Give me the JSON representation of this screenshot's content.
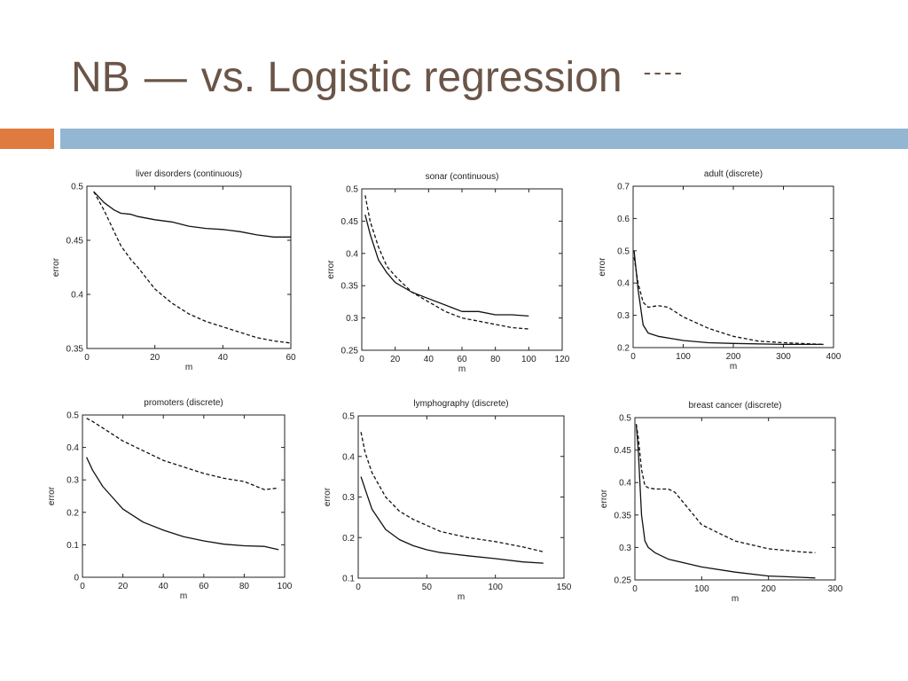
{
  "slide": {
    "title_left": "NB",
    "title_dash": "—",
    "title_right": "vs. Logistic regression",
    "title_dotted": "----",
    "colors": {
      "title": "#6b5548",
      "bar_orange": "#e07b3f",
      "bar_blue": "#93b6d2"
    }
  },
  "chart_data": [
    {
      "type": "line",
      "title": "liver disorders (continuous)",
      "xlabel": "m",
      "ylabel": "error",
      "xlim": [
        0,
        60
      ],
      "ylim": [
        0.35,
        0.5
      ],
      "xticks": [
        0,
        20,
        40,
        60
      ],
      "yticks": [
        0.35,
        0.4,
        0.45,
        0.5
      ],
      "ytick_labels": [
        "0.35",
        "0.4",
        "0.45",
        "0.5"
      ],
      "series": [
        {
          "style": "solid",
          "x": [
            2,
            5,
            8,
            10,
            13,
            15,
            20,
            25,
            30,
            35,
            40,
            45,
            50,
            55,
            60
          ],
          "y": [
            0.495,
            0.485,
            0.478,
            0.475,
            0.474,
            0.472,
            0.469,
            0.467,
            0.463,
            0.461,
            0.46,
            0.458,
            0.455,
            0.453,
            0.453
          ]
        },
        {
          "style": "dashed",
          "x": [
            2,
            5,
            8,
            10,
            13,
            15,
            20,
            25,
            30,
            35,
            40,
            45,
            50,
            55,
            60
          ],
          "y": [
            0.495,
            0.478,
            0.458,
            0.445,
            0.432,
            0.425,
            0.405,
            0.392,
            0.382,
            0.375,
            0.37,
            0.365,
            0.36,
            0.357,
            0.355
          ]
        }
      ]
    },
    {
      "type": "line",
      "title": "sonar (continuous)",
      "xlabel": "m",
      "ylabel": "error",
      "xlim": [
        0,
        120
      ],
      "ylim": [
        0.25,
        0.5
      ],
      "xticks": [
        0,
        20,
        40,
        60,
        80,
        100,
        120
      ],
      "yticks": [
        0.25,
        0.3,
        0.35,
        0.4,
        0.45,
        0.5
      ],
      "ytick_labels": [
        "0.25",
        "0.3",
        "0.35",
        "0.4",
        "0.45",
        "0.5"
      ],
      "series": [
        {
          "style": "solid",
          "x": [
            2,
            5,
            10,
            15,
            20,
            30,
            40,
            50,
            60,
            70,
            80,
            90,
            100
          ],
          "y": [
            0.46,
            0.43,
            0.39,
            0.37,
            0.355,
            0.34,
            0.33,
            0.32,
            0.31,
            0.31,
            0.305,
            0.305,
            0.303
          ]
        },
        {
          "style": "dashed",
          "x": [
            2,
            5,
            10,
            15,
            20,
            30,
            40,
            50,
            60,
            70,
            80,
            90,
            100
          ],
          "y": [
            0.49,
            0.45,
            0.41,
            0.38,
            0.365,
            0.34,
            0.325,
            0.31,
            0.3,
            0.295,
            0.29,
            0.285,
            0.283
          ]
        }
      ]
    },
    {
      "type": "line",
      "title": "adult (discrete)",
      "xlabel": "m",
      "ylabel": "error",
      "xlim": [
        0,
        400
      ],
      "ylim": [
        0.2,
        0.7
      ],
      "xticks": [
        0,
        100,
        200,
        300,
        400
      ],
      "yticks": [
        0.2,
        0.3,
        0.4,
        0.5,
        0.6,
        0.7
      ],
      "ytick_labels": [
        "0.2",
        "0.3",
        "0.4",
        "0.5",
        "0.6",
        "0.7"
      ],
      "series": [
        {
          "style": "solid",
          "x": [
            2,
            10,
            20,
            30,
            50,
            100,
            150,
            200,
            300,
            380
          ],
          "y": [
            0.5,
            0.38,
            0.27,
            0.245,
            0.235,
            0.222,
            0.215,
            0.213,
            0.21,
            0.21
          ]
        },
        {
          "style": "dashed",
          "x": [
            2,
            10,
            20,
            30,
            50,
            70,
            100,
            150,
            200,
            250,
            300,
            380
          ],
          "y": [
            0.48,
            0.4,
            0.34,
            0.325,
            0.33,
            0.325,
            0.295,
            0.26,
            0.235,
            0.22,
            0.215,
            0.21
          ]
        }
      ]
    },
    {
      "type": "line",
      "title": "promoters (discrete)",
      "xlabel": "m",
      "ylabel": "error",
      "xlim": [
        0,
        100
      ],
      "ylim": [
        0,
        0.5
      ],
      "xticks": [
        0,
        20,
        40,
        60,
        80,
        100
      ],
      "yticks": [
        0,
        0.1,
        0.2,
        0.3,
        0.4,
        0.5
      ],
      "ytick_labels": [
        "0",
        "0.1",
        "0.2",
        "0.3",
        "0.4",
        "0.5"
      ],
      "series": [
        {
          "style": "solid",
          "x": [
            2,
            5,
            10,
            20,
            30,
            40,
            50,
            60,
            70,
            80,
            90,
            97
          ],
          "y": [
            0.37,
            0.33,
            0.28,
            0.21,
            0.17,
            0.145,
            0.125,
            0.112,
            0.102,
            0.097,
            0.095,
            0.085
          ]
        },
        {
          "style": "dashed",
          "x": [
            2,
            5,
            10,
            20,
            30,
            40,
            50,
            60,
            70,
            80,
            90,
            97
          ],
          "y": [
            0.49,
            0.48,
            0.46,
            0.42,
            0.39,
            0.36,
            0.34,
            0.32,
            0.305,
            0.295,
            0.27,
            0.275
          ]
        }
      ]
    },
    {
      "type": "line",
      "title": "lymphography (discrete)",
      "xlabel": "m",
      "ylabel": "error",
      "xlim": [
        0,
        150
      ],
      "ylim": [
        0.1,
        0.5
      ],
      "xticks": [
        0,
        50,
        100,
        150
      ],
      "yticks": [
        0.1,
        0.2,
        0.3,
        0.4,
        0.5
      ],
      "ytick_labels": [
        "0.1",
        "0.2",
        "0.3",
        "0.4",
        "0.5"
      ],
      "series": [
        {
          "style": "solid",
          "x": [
            2,
            5,
            10,
            20,
            30,
            40,
            50,
            60,
            80,
            100,
            120,
            135
          ],
          "y": [
            0.35,
            0.32,
            0.27,
            0.22,
            0.195,
            0.18,
            0.17,
            0.163,
            0.155,
            0.148,
            0.14,
            0.137
          ]
        },
        {
          "style": "dashed",
          "x": [
            2,
            5,
            10,
            20,
            30,
            40,
            50,
            60,
            80,
            100,
            120,
            135
          ],
          "y": [
            0.46,
            0.41,
            0.36,
            0.3,
            0.265,
            0.245,
            0.23,
            0.215,
            0.2,
            0.19,
            0.177,
            0.165
          ]
        }
      ]
    },
    {
      "type": "line",
      "title": "breast cancer (discrete)",
      "xlabel": "m",
      "ylabel": "error",
      "xlim": [
        0,
        300
      ],
      "ylim": [
        0.25,
        0.5
      ],
      "xticks": [
        0,
        100,
        200,
        300
      ],
      "yticks": [
        0.25,
        0.3,
        0.35,
        0.4,
        0.45,
        0.5
      ],
      "ytick_labels": [
        "0.25",
        "0.3",
        "0.35",
        "0.4",
        "0.45",
        "0.5"
      ],
      "series": [
        {
          "style": "solid",
          "x": [
            2,
            5,
            10,
            15,
            20,
            30,
            50,
            100,
            150,
            200,
            250,
            270
          ],
          "y": [
            0.49,
            0.45,
            0.35,
            0.31,
            0.3,
            0.292,
            0.282,
            0.27,
            0.262,
            0.256,
            0.254,
            0.253
          ]
        },
        {
          "style": "dashed",
          "x": [
            2,
            5,
            10,
            15,
            20,
            30,
            50,
            60,
            80,
            100,
            150,
            200,
            250,
            270
          ],
          "y": [
            0.49,
            0.47,
            0.42,
            0.395,
            0.392,
            0.39,
            0.39,
            0.385,
            0.36,
            0.335,
            0.31,
            0.298,
            0.293,
            0.292
          ]
        }
      ]
    }
  ]
}
